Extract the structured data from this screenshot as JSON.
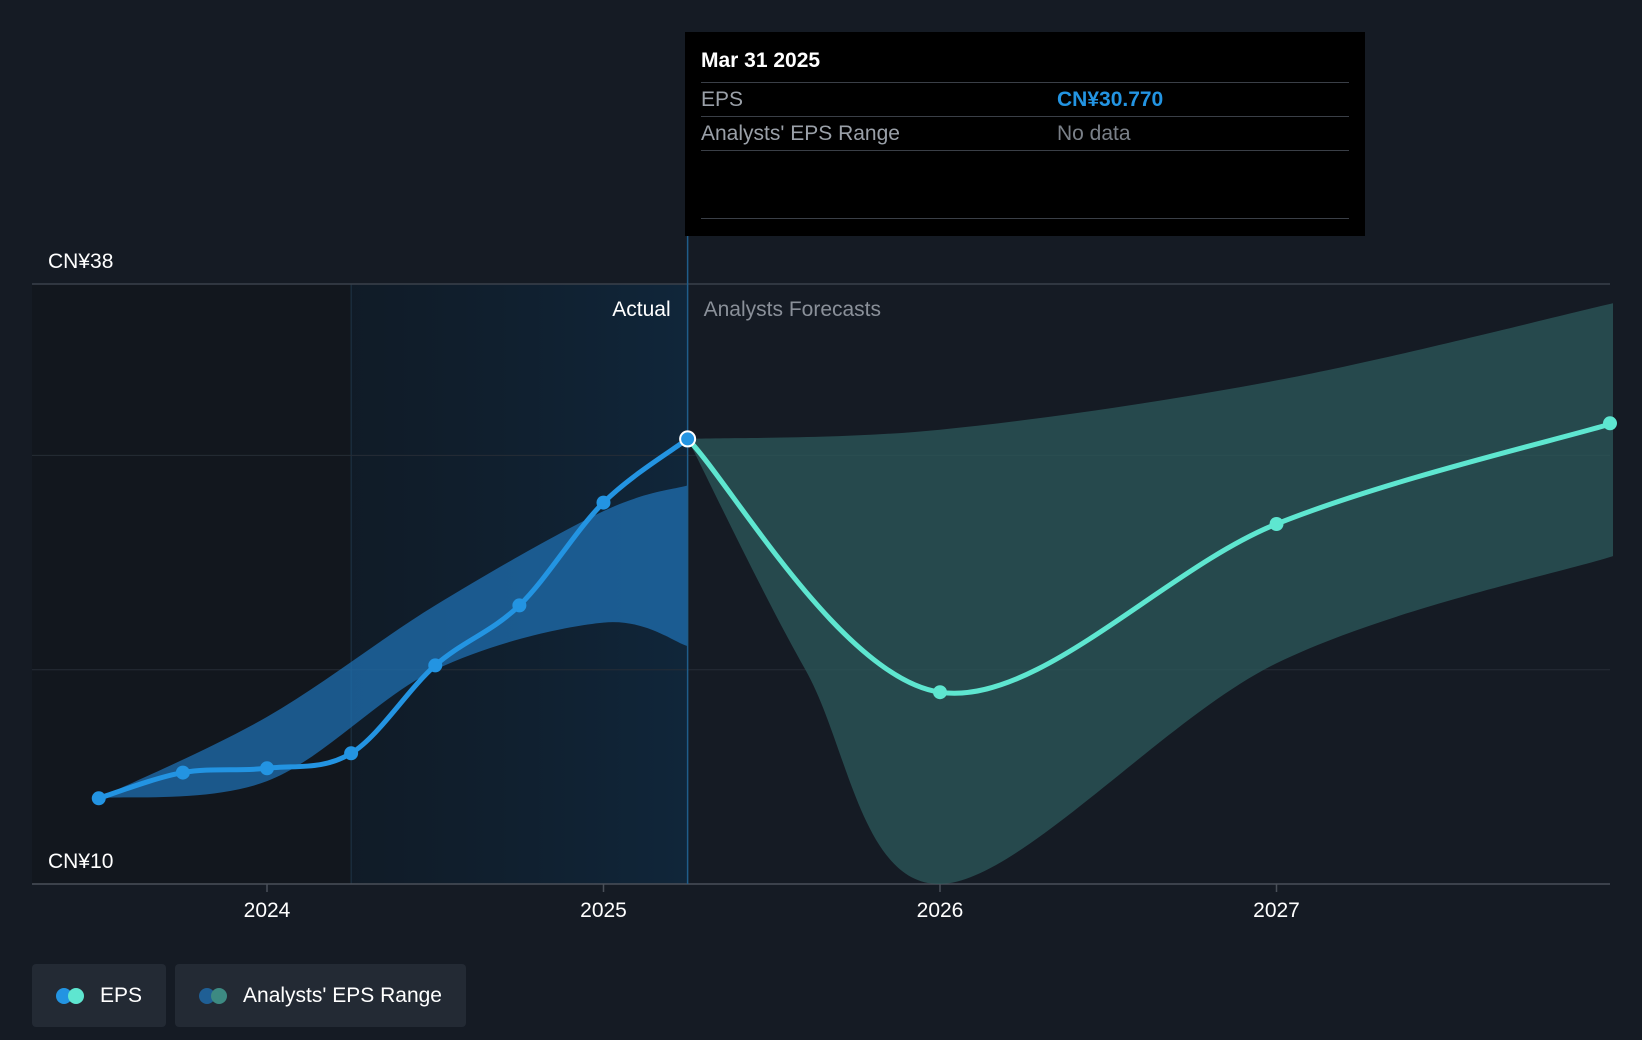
{
  "chart_data": {
    "type": "line",
    "y_axis": {
      "top_label": "CN¥38",
      "bottom_label": "CN¥10",
      "ylim": [
        10,
        38
      ]
    },
    "x_axis": {
      "ticks": [
        {
          "label": "2024",
          "t": 2024.0
        },
        {
          "label": "2025",
          "t": 2025.0
        },
        {
          "label": "2026",
          "t": 2026.0
        },
        {
          "label": "2027",
          "t": 2027.0
        }
      ],
      "xlim": [
        2023.3,
        2028.0
      ]
    },
    "divider_t": 2025.25,
    "actual_region_start_t": 2024.25,
    "section_labels": {
      "actual": "Actual",
      "forecast": "Analysts Forecasts"
    },
    "eps_actual": [
      {
        "t": 2023.5,
        "v": 14.0
      },
      {
        "t": 2023.75,
        "v": 15.2
      },
      {
        "t": 2024.0,
        "v": 15.4
      },
      {
        "t": 2024.25,
        "v": 16.1
      },
      {
        "t": 2024.5,
        "v": 20.2
      },
      {
        "t": 2024.75,
        "v": 23.0
      },
      {
        "t": 2025.0,
        "v": 27.8
      },
      {
        "t": 2025.25,
        "v": 30.77
      }
    ],
    "eps_forecast": [
      {
        "t": 2025.25,
        "v": 30.77
      },
      {
        "t": 2026.0,
        "v": 18.95
      },
      {
        "t": 2027.0,
        "v": 26.8
      },
      {
        "t": 2028.0,
        "v": 31.5
      }
    ],
    "range_actual_upper": [
      {
        "t": 2023.5,
        "v": 14.0
      },
      {
        "t": 2024.0,
        "v": 17.8
      },
      {
        "t": 2024.5,
        "v": 23.0
      },
      {
        "t": 2025.0,
        "v": 27.4
      },
      {
        "t": 2025.25,
        "v": 28.6
      }
    ],
    "range_actual_lower": [
      {
        "t": 2023.5,
        "v": 14.0
      },
      {
        "t": 2024.0,
        "v": 14.8
      },
      {
        "t": 2024.5,
        "v": 20.0
      },
      {
        "t": 2025.0,
        "v": 22.2
      },
      {
        "t": 2025.25,
        "v": 21.1
      }
    ],
    "range_forecast_upper": [
      {
        "t": 2025.25,
        "v": 30.77
      },
      {
        "t": 2026.0,
        "v": 31.2
      },
      {
        "t": 2027.0,
        "v": 33.5
      },
      {
        "t": 2028.0,
        "v": 37.1
      }
    ],
    "range_forecast_lower": [
      {
        "t": 2025.25,
        "v": 30.77
      },
      {
        "t": 2025.6,
        "v": 20.0
      },
      {
        "t": 2026.0,
        "v": 10.0
      },
      {
        "t": 2027.0,
        "v": 20.3
      },
      {
        "t": 2028.0,
        "v": 25.3
      }
    ],
    "colors": {
      "eps_actual": "#2394e2",
      "eps_forecast": "#5ee6d0",
      "range_actual": "#1f6fb0",
      "range_forecast": "#2c5a5b",
      "actual_region": "#102235"
    }
  },
  "tooltip": {
    "date": "Mar 31 2025",
    "eps_label": "EPS",
    "eps_value": "CN¥30.770",
    "range_label": "Analysts' EPS Range",
    "range_value": "No data"
  },
  "legend": {
    "eps_label": "EPS",
    "range_label": "Analysts' EPS Range"
  }
}
